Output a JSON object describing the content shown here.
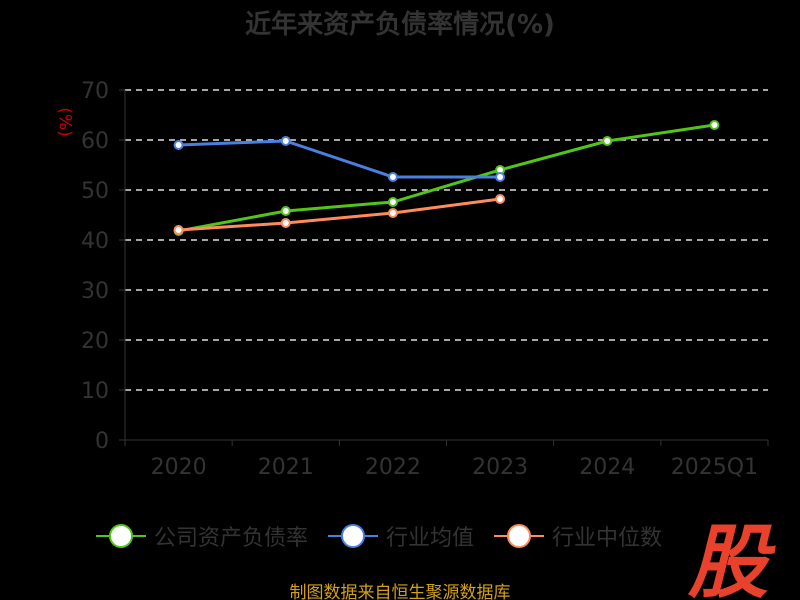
{
  "chart_data": {
    "type": "line",
    "title": "近年来资产负债率情况(%)",
    "ylabel": "(%)",
    "ylim": [
      0,
      70
    ],
    "yticks": [
      0,
      10,
      20,
      30,
      40,
      50,
      60,
      70
    ],
    "categories": [
      "2020",
      "2021",
      "2022",
      "2023",
      "2024",
      "2025Q1"
    ],
    "series": [
      {
        "name": "公司资产负债率",
        "color": "#52c41a",
        "values": [
          41.8,
          45.8,
          47.6,
          54.0,
          59.8,
          63.0
        ]
      },
      {
        "name": "行业均值",
        "color": "#4a80e0",
        "values": [
          59.0,
          59.8,
          52.6,
          52.6,
          null,
          null
        ]
      },
      {
        "name": "行业中位数",
        "color": "#ff8a5c",
        "values": [
          42.0,
          43.4,
          45.4,
          48.2,
          null,
          null
        ]
      }
    ],
    "grid": true,
    "legend": "bottom"
  },
  "logo_text": "股",
  "source": "制图数据来自恒生聚源数据库"
}
